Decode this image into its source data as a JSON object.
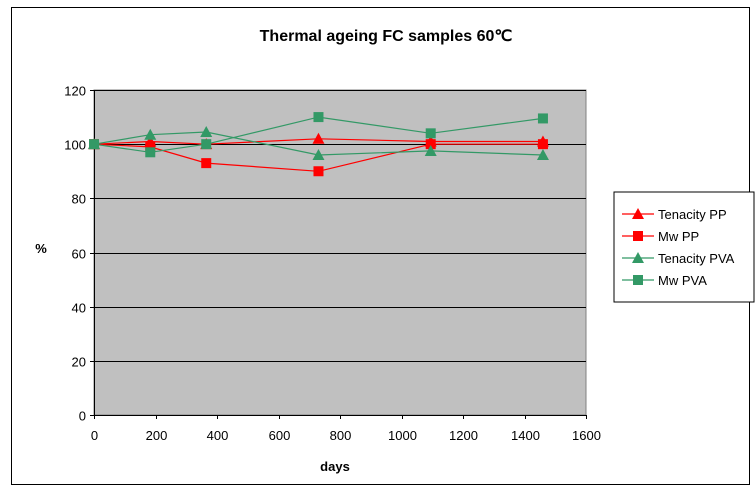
{
  "chart_data": {
    "type": "line",
    "title": "Thermal ageing FC samples 60℃",
    "xlabel": "days",
    "ylabel": "%",
    "xlim": [
      0,
      1600
    ],
    "ylim": [
      0,
      120
    ],
    "xticks": [
      0,
      200,
      400,
      600,
      800,
      1000,
      1200,
      1400,
      1600
    ],
    "yticks": [
      0,
      20,
      40,
      60,
      80,
      100,
      120
    ],
    "grid": "horizontal",
    "plot_background": "#c0c0c0",
    "legend_position": "right",
    "series": [
      {
        "name": "Tenacity PP",
        "color": "#ff0000",
        "marker": "triangle",
        "x": [
          0,
          183,
          365,
          730,
          1095,
          1460
        ],
        "y": [
          100,
          101,
          100,
          102,
          101,
          101
        ]
      },
      {
        "name": "Mw PP",
        "color": "#ff0000",
        "marker": "square",
        "x": [
          0,
          183,
          365,
          730,
          1095,
          1460
        ],
        "y": [
          100,
          99,
          93,
          90,
          100,
          100
        ]
      },
      {
        "name": "Tenacity PVA",
        "color": "#339966",
        "marker": "triangle",
        "x": [
          0,
          183,
          365,
          730,
          1095,
          1460
        ],
        "y": [
          100,
          103.5,
          104.5,
          96,
          97.5,
          96
        ]
      },
      {
        "name": "Mw PVA",
        "color": "#339966",
        "marker": "square",
        "x": [
          0,
          183,
          365,
          730,
          1095,
          1460
        ],
        "y": [
          100,
          97,
          100,
          110,
          104,
          109.5
        ]
      }
    ]
  }
}
